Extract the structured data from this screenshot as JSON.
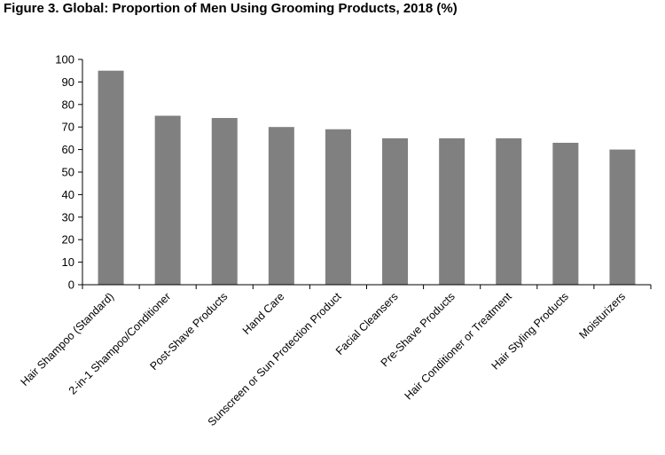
{
  "chart_data": {
    "type": "bar",
    "title": "Figure 3. Global: Proportion of Men Using Grooming Products, 2018 (%)",
    "xlabel": "",
    "ylabel": "",
    "ylim": [
      0,
      100
    ],
    "yticks": [
      "0",
      "10",
      "20",
      "30",
      "40",
      "50",
      "60",
      "70",
      "80",
      "90",
      "100"
    ],
    "grid": false,
    "legend": "none",
    "bar_color": "#808080",
    "categories": [
      "Hair Shampoo (Standard)",
      "2-in-1 Shampoo/Conditioner",
      "Post-Shave Products",
      "Hand Care",
      "Sunscreen or Sun Protection Product",
      "Facial Cleansers",
      "Pre-Shave Products",
      "Hair Conditioner or Treatment",
      "Hair Styling Products",
      "Moisturizers"
    ],
    "values": [
      95,
      75,
      74,
      70,
      69,
      65,
      65,
      65,
      63,
      60
    ]
  }
}
